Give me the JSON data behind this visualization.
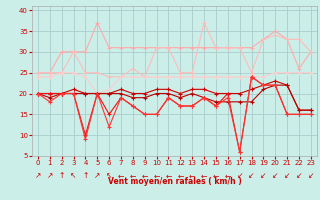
{
  "background_color": "#cceee8",
  "grid_color": "#aacccc",
  "xlabel": "Vent moyen/en rafales ( km/h )",
  "xlim": [
    -0.5,
    23.5
  ],
  "ylim": [
    5,
    41
  ],
  "yticks": [
    5,
    10,
    15,
    20,
    25,
    30,
    35,
    40
  ],
  "xticks": [
    0,
    1,
    2,
    3,
    4,
    5,
    6,
    7,
    8,
    9,
    10,
    11,
    12,
    13,
    14,
    15,
    16,
    17,
    18,
    19,
    20,
    21,
    22,
    23
  ],
  "x": [
    0,
    1,
    2,
    3,
    4,
    5,
    6,
    7,
    8,
    9,
    10,
    11,
    12,
    13,
    14,
    15,
    16,
    17,
    18,
    19,
    20,
    21,
    22,
    23
  ],
  "line_pink1_color": "#ffaaaa",
  "line_pink1_y": [
    25,
    25,
    30,
    30,
    30,
    37,
    31,
    31,
    31,
    31,
    31,
    31,
    31,
    31,
    31,
    31,
    31,
    31,
    31,
    33,
    35,
    33,
    26,
    30
  ],
  "line_pink2_color": "#ffbbbb",
  "line_pink2_y": [
    25,
    25,
    25,
    30,
    25,
    25,
    24,
    24,
    26,
    24,
    31,
    31,
    25,
    25,
    37,
    31,
    31,
    31,
    25,
    33,
    34,
    33,
    33,
    30
  ],
  "line_pink3_color": "#ffcccc",
  "line_pink3_y": [
    24,
    24,
    25,
    25,
    24,
    20,
    21,
    24,
    24,
    24,
    24,
    24,
    24,
    24,
    24,
    24,
    24,
    24,
    24,
    24,
    25,
    25,
    25,
    25
  ],
  "line_dark1_color": "#cc0000",
  "line_dark1_y": [
    20,
    20,
    20,
    21,
    20,
    20,
    20,
    21,
    20,
    20,
    21,
    21,
    20,
    21,
    21,
    20,
    20,
    20,
    21,
    22,
    23,
    22,
    16,
    16
  ],
  "line_dark2_color": "#bb0000",
  "line_dark2_y": [
    20,
    19,
    20,
    20,
    20,
    20,
    20,
    20,
    19,
    19,
    20,
    20,
    19,
    20,
    19,
    18,
    18,
    18,
    18,
    21,
    22,
    22,
    16,
    16
  ],
  "line_dark3_color": "#ee1111",
  "line_dark3_y": [
    20,
    20,
    20,
    20,
    10,
    20,
    15,
    19,
    17,
    15,
    15,
    19,
    17,
    17,
    19,
    17,
    20,
    6,
    24,
    22,
    22,
    15,
    15,
    15
  ],
  "line_dark4_color": "#ff3333",
  "line_dark4_y": [
    20,
    18,
    20,
    20,
    9,
    20,
    12,
    19,
    17,
    15,
    15,
    19,
    17,
    17,
    19,
    17,
    19,
    6,
    24,
    22,
    22,
    15,
    15,
    15
  ],
  "arrow_symbols": [
    "↗",
    "↗",
    "↑",
    "↖",
    "↑",
    "↗",
    "↖",
    "←",
    "←",
    "←",
    "←",
    "←",
    "←",
    "←",
    "←",
    "←",
    "←",
    "↙",
    "↙",
    "↙",
    "↙",
    "↙",
    "↙",
    "↙"
  ],
  "arrow_color": "#cc0000",
  "arrow_fontsize": 5.5,
  "tick_labelsize": 5,
  "xlabel_fontsize": 5.5
}
